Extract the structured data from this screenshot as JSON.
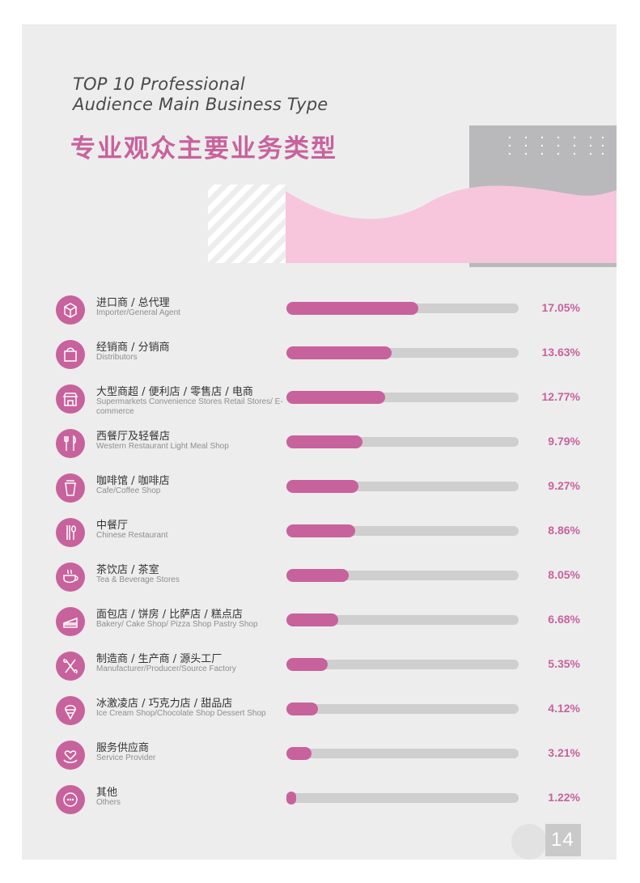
{
  "title": {
    "en_line1": "TOP 10 Professional",
    "en_line2": "Audience Main Business Type",
    "cn": "专业观众主要业务类型"
  },
  "page_number": "14",
  "colors": {
    "accent": "#c8629c",
    "track": "#cfcfcf",
    "page_bg": "#ededee",
    "wave_pink": "#f7c6dd",
    "silver": "#b9b9bb"
  },
  "chart_data": {
    "type": "bar",
    "orientation": "horizontal",
    "value_unit": "%",
    "xlim": [
      0,
      30
    ],
    "categories": [
      {
        "cn": "进口商 / 总代理",
        "en": "Importer/General Agent",
        "icon": "box-icon"
      },
      {
        "cn": "经销商 / 分销商",
        "en": "Distributors",
        "icon": "shopping-bag-icon"
      },
      {
        "cn": "大型商超 / 便利店 / 零售店 / 电商",
        "en": "Supermarkets Convenience Stores Retail Stores/ E-commerce",
        "icon": "storefront-icon"
      },
      {
        "cn": "西餐厅及轻餐店",
        "en": "Western Restaurant Light Meal Shop",
        "icon": "fork-knife-icon"
      },
      {
        "cn": "咖啡馆 / 咖啡店",
        "en": "Cafe/Coffee Shop",
        "icon": "coffee-cup-icon"
      },
      {
        "cn": "中餐厅",
        "en": "Chinese Restaurant",
        "icon": "chopsticks-spoon-icon"
      },
      {
        "cn": "茶饮店 / 茶室",
        "en": "Tea & Beverage Stores",
        "icon": "tea-cup-icon"
      },
      {
        "cn": "面包店 / 饼房 / 比萨店 / 糕点店",
        "en": "Bakery/ Cake Shop/ Pizza Shop Pastry Shop",
        "icon": "cake-slice-icon"
      },
      {
        "cn": "制造商 / 生产商 / 源头工厂",
        "en": "Manufacturer/Producer/Source Factory",
        "icon": "tools-icon"
      },
      {
        "cn": "冰激凌店 / 巧克力店 / 甜品店",
        "en": "Ice Cream Shop/Chocolate Shop Dessert Shop",
        "icon": "ice-cream-icon"
      },
      {
        "cn": "服务供应商",
        "en": "Service Provider",
        "icon": "heart-hand-icon"
      },
      {
        "cn": "其他",
        "en": "Others",
        "icon": "more-dots-icon"
      }
    ],
    "values": [
      17.05,
      13.63,
      12.77,
      9.79,
      9.27,
      8.86,
      8.05,
      6.68,
      5.35,
      4.12,
      3.21,
      1.22
    ],
    "value_labels": [
      "17.05%",
      "13.63%",
      "12.77%",
      "9.79%",
      "9.27%",
      "8.86%",
      "8.05%",
      "6.68%",
      "5.35%",
      "4.12%",
      "3.21%",
      "1.22%"
    ]
  }
}
